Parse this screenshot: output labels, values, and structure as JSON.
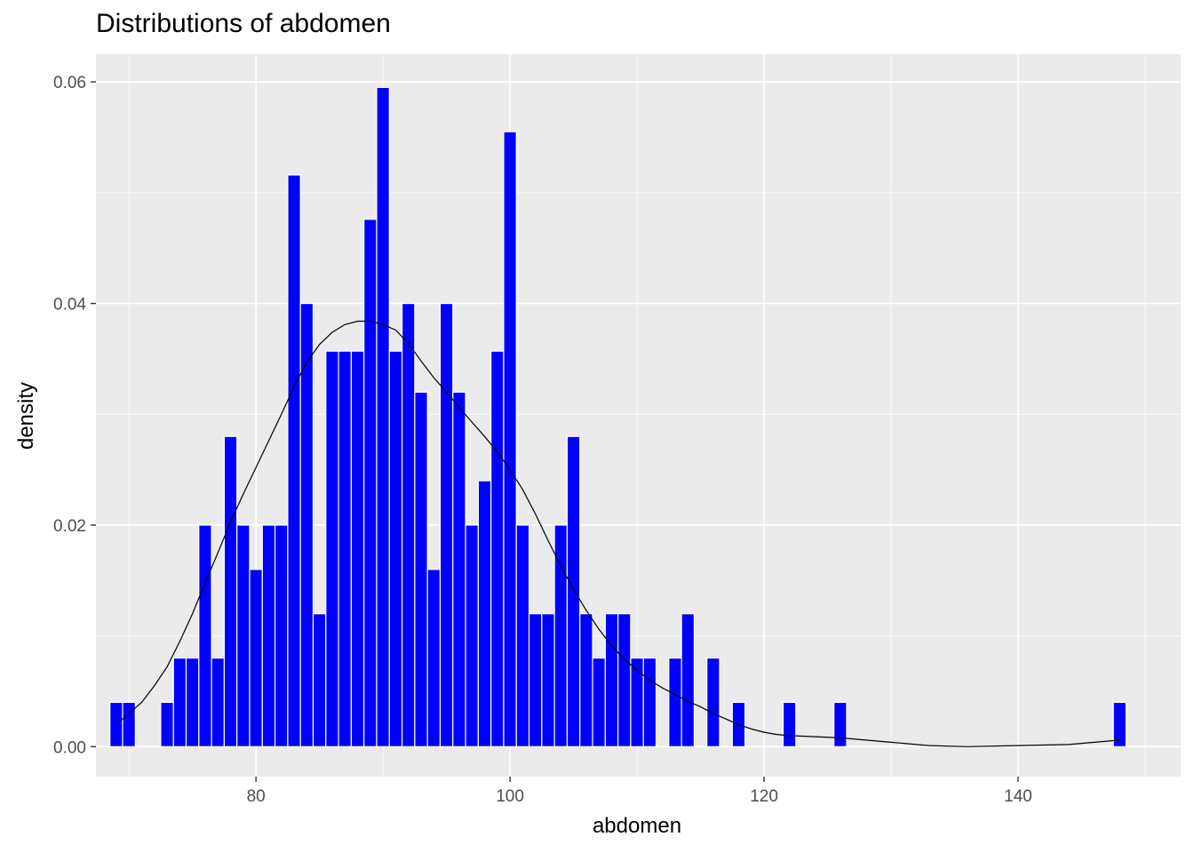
{
  "chart_data": {
    "type": "bar",
    "title": "Distributions of abdomen",
    "xlabel": "abdomen",
    "ylabel": "density",
    "xlim": [
      67.4,
      152.8
    ],
    "ylim": [
      -0.0027,
      0.0625
    ],
    "x_ticks": [
      "80",
      "100",
      "120",
      "140"
    ],
    "x_tick_values": [
      80,
      100,
      120,
      140
    ],
    "y_ticks": [
      "0.00",
      "0.02",
      "0.04",
      "0.06"
    ],
    "y_tick_values": [
      0.0,
      0.02,
      0.04,
      0.06
    ],
    "bin_width": 1,
    "bins": [
      {
        "x": 69,
        "y": 0.004
      },
      {
        "x": 70,
        "y": 0.004
      },
      {
        "x": 73,
        "y": 0.004
      },
      {
        "x": 74,
        "y": 0.008
      },
      {
        "x": 75,
        "y": 0.008
      },
      {
        "x": 76,
        "y": 0.02
      },
      {
        "x": 77,
        "y": 0.008
      },
      {
        "x": 78,
        "y": 0.028
      },
      {
        "x": 79,
        "y": 0.02
      },
      {
        "x": 80,
        "y": 0.016
      },
      {
        "x": 81,
        "y": 0.02
      },
      {
        "x": 82,
        "y": 0.02
      },
      {
        "x": 83,
        "y": 0.0516
      },
      {
        "x": 84,
        "y": 0.04
      },
      {
        "x": 85,
        "y": 0.012
      },
      {
        "x": 86,
        "y": 0.0357
      },
      {
        "x": 87,
        "y": 0.0357
      },
      {
        "x": 88,
        "y": 0.0357
      },
      {
        "x": 89,
        "y": 0.0476
      },
      {
        "x": 90,
        "y": 0.0595
      },
      {
        "x": 91,
        "y": 0.0357
      },
      {
        "x": 92,
        "y": 0.04
      },
      {
        "x": 93,
        "y": 0.032
      },
      {
        "x": 94,
        "y": 0.016
      },
      {
        "x": 95,
        "y": 0.04
      },
      {
        "x": 96,
        "y": 0.032
      },
      {
        "x": 97,
        "y": 0.02
      },
      {
        "x": 98,
        "y": 0.024
      },
      {
        "x": 99,
        "y": 0.0357
      },
      {
        "x": 100,
        "y": 0.0555
      },
      {
        "x": 101,
        "y": 0.02
      },
      {
        "x": 102,
        "y": 0.012
      },
      {
        "x": 103,
        "y": 0.012
      },
      {
        "x": 104,
        "y": 0.02
      },
      {
        "x": 105,
        "y": 0.028
      },
      {
        "x": 106,
        "y": 0.012
      },
      {
        "x": 107,
        "y": 0.008
      },
      {
        "x": 108,
        "y": 0.012
      },
      {
        "x": 109,
        "y": 0.012
      },
      {
        "x": 110,
        "y": 0.008
      },
      {
        "x": 111,
        "y": 0.008
      },
      {
        "x": 113,
        "y": 0.008
      },
      {
        "x": 114,
        "y": 0.012
      },
      {
        "x": 116,
        "y": 0.008
      },
      {
        "x": 118,
        "y": 0.004
      },
      {
        "x": 122,
        "y": 0.004
      },
      {
        "x": 126,
        "y": 0.004
      },
      {
        "x": 148,
        "y": 0.004
      }
    ],
    "density_curve": {
      "x": [
        69.3,
        70,
        71,
        72,
        73,
        74,
        75,
        76,
        77,
        78,
        79,
        80,
        81,
        82,
        83,
        84,
        85,
        86,
        87,
        88,
        89,
        90,
        91,
        92,
        93,
        94,
        95,
        96,
        97,
        98,
        99,
        100,
        101,
        102,
        103,
        104,
        105,
        106,
        107,
        108,
        109,
        110,
        111,
        112,
        113,
        114,
        115,
        116,
        117,
        118,
        119,
        120,
        121,
        122,
        124,
        126,
        128,
        130,
        133,
        136,
        140,
        144,
        146,
        148
      ],
      "y": [
        0.0023,
        0.003,
        0.004,
        0.0055,
        0.0072,
        0.0095,
        0.012,
        0.0148,
        0.0175,
        0.0203,
        0.0228,
        0.0252,
        0.0276,
        0.03,
        0.0325,
        0.0347,
        0.0363,
        0.0374,
        0.0381,
        0.0384,
        0.0384,
        0.0381,
        0.0376,
        0.0364,
        0.0348,
        0.0333,
        0.032,
        0.0306,
        0.0293,
        0.028,
        0.0266,
        0.025,
        0.0232,
        0.021,
        0.0186,
        0.0163,
        0.0142,
        0.0123,
        0.0106,
        0.0091,
        0.0079,
        0.0069,
        0.006,
        0.0053,
        0.0047,
        0.0041,
        0.0036,
        0.003,
        0.0025,
        0.002,
        0.0016,
        0.0013,
        0.0011,
        0.001,
        0.0009,
        0.0008,
        0.0006,
        0.0004,
        0.0001,
        0.0,
        0.0001,
        0.0002,
        0.0004,
        0.0006
      ]
    },
    "grid": true,
    "legend": "none",
    "colors": {
      "bar_fill": "#0000ff",
      "bar_border": "#ffffff",
      "panel": "#ebebeb",
      "grid": "#ffffff",
      "curve": "#000000"
    }
  }
}
